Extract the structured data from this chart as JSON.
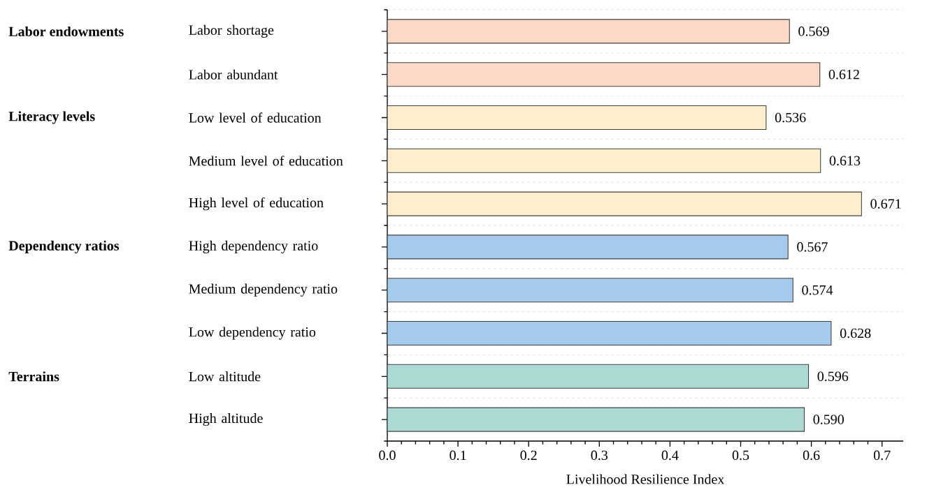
{
  "chart_data": {
    "type": "bar",
    "orientation": "horizontal",
    "xlabel": "Livelihood Resilience Index",
    "categories": [
      "Labor shortage",
      "Labor abundant",
      "Low level of education",
      "Medium level of education",
      "High level of education",
      "High dependency ratio",
      "Medium dependency ratio",
      "Low dependency ratio",
      "Low altitude",
      "High altitude"
    ],
    "values": [
      0.569,
      0.612,
      0.536,
      0.613,
      0.671,
      0.567,
      0.574,
      0.628,
      0.596,
      0.59
    ],
    "value_labels": [
      "0.569",
      "0.612",
      "0.536",
      "0.613",
      "0.671",
      "0.567",
      "0.574",
      "0.628",
      "0.596",
      "0.590"
    ],
    "colors": [
      "#fcd9c6",
      "#fcd9c6",
      "#fdefcb",
      "#fdefcb",
      "#fdefcb",
      "#a4cbee",
      "#a4cbee",
      "#a4cbee",
      "#acdbd5",
      "#acdbd5"
    ],
    "xlim": [
      0,
      0.73
    ],
    "xticks": [
      {
        "value": 0,
        "label": "0.0"
      },
      0.1,
      0.2,
      0.3,
      0.4,
      0.5,
      0.6,
      0.7
    ],
    "grid": "y",
    "annotations": [
      "Labor endowments",
      "Literacy levels",
      "Dependency ratios",
      "Terrains"
    ]
  }
}
